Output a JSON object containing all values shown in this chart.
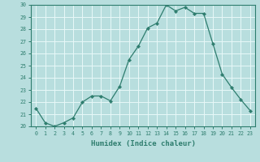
{
  "x": [
    0,
    1,
    2,
    3,
    4,
    5,
    6,
    7,
    8,
    9,
    10,
    11,
    12,
    13,
    14,
    15,
    16,
    17,
    18,
    19,
    20,
    21,
    22,
    23
  ],
  "y": [
    21.5,
    20.3,
    20.0,
    20.3,
    20.7,
    22.0,
    22.5,
    22.5,
    22.1,
    23.3,
    25.5,
    26.6,
    28.1,
    28.5,
    30.0,
    29.5,
    29.8,
    29.3,
    29.3,
    26.8,
    24.3,
    23.2,
    22.2,
    21.3
  ],
  "xlabel": "Humidex (Indice chaleur)",
  "bg_color": "#b8dede",
  "grid_color": "#e8f8f8",
  "line_color": "#2e7d6e",
  "marker_color": "#2e7d6e",
  "spine_color": "#2e7d6e",
  "tick_color": "#2e7d6e",
  "label_color": "#2e7d6e",
  "ylim": [
    20,
    30
  ],
  "xlim": [
    -0.5,
    23.5
  ],
  "yticks": [
    20,
    21,
    22,
    23,
    24,
    25,
    26,
    27,
    28,
    29,
    30
  ],
  "xticks": [
    0,
    1,
    2,
    3,
    4,
    5,
    6,
    7,
    8,
    9,
    10,
    11,
    12,
    13,
    14,
    15,
    16,
    17,
    18,
    19,
    20,
    21,
    22,
    23
  ]
}
